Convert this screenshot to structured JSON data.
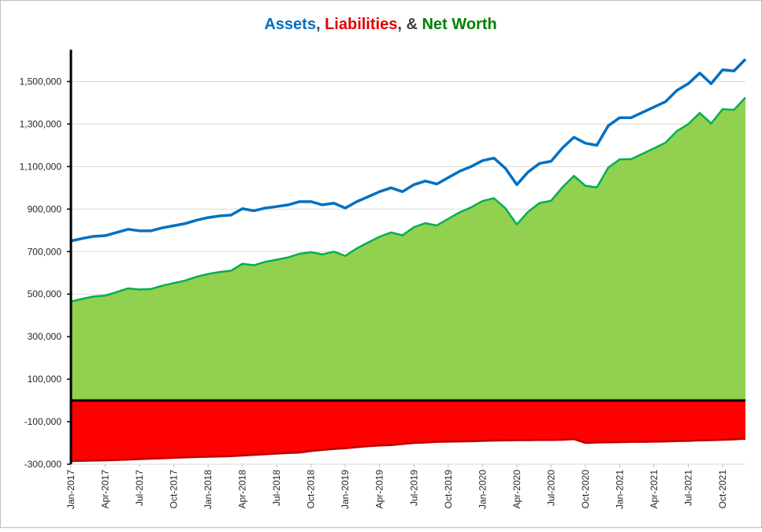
{
  "chart_data": {
    "type": "area",
    "title_segments": [
      {
        "text": "Assets",
        "color": "#0070c0"
      },
      {
        "text": ", ",
        "color": "#404040"
      },
      {
        "text": "Liabilities",
        "color": "#e00000"
      },
      {
        "text": ", & ",
        "color": "#404040"
      },
      {
        "text": "Net Worth",
        "color": "#008000"
      }
    ],
    "categories": [
      "Jan-2017",
      null,
      null,
      "Apr-2017",
      null,
      null,
      "Jul-2017",
      null,
      null,
      "Oct-2017",
      null,
      null,
      "Jan-2018",
      null,
      null,
      "Apr-2018",
      null,
      null,
      "Jul-2018",
      null,
      null,
      "Oct-2018",
      null,
      null,
      "Jan-2019",
      null,
      null,
      "Apr-2019",
      null,
      null,
      "Jul-2019",
      null,
      null,
      "Oct-2019",
      null,
      null,
      "Jan-2020",
      null,
      null,
      "Apr-2020",
      null,
      null,
      "Jul-2020",
      null,
      null,
      "Oct-2020",
      null,
      null,
      "Jan-2021",
      null,
      null,
      "Apr-2021",
      null,
      null,
      "Jul-2021",
      null,
      null,
      "Oct-2021",
      null,
      null
    ],
    "series": [
      {
        "name": "Net Worth",
        "kind": "area",
        "color": "#92d050",
        "line_color": "#00b050",
        "values": [
          465000,
          478000,
          489000,
          493000,
          510000,
          527000,
          522000,
          524000,
          540000,
          552000,
          564000,
          582000,
          595000,
          604000,
          610000,
          643000,
          636000,
          652000,
          662000,
          673000,
          690000,
          697000,
          687000,
          700000,
          680000,
          715000,
          743000,
          770000,
          790000,
          777000,
          815000,
          834000,
          823000,
          854000,
          885000,
          908000,
          938000,
          951000,
          904000,
          828000,
          888000,
          929000,
          939000,
          1003000,
          1056000,
          1010000,
          1002000,
          1095000,
          1134000,
          1135000,
          1160000,
          1186000,
          1212000,
          1267000,
          1300000,
          1352000,
          1303000,
          1370000,
          1367000,
          1425000
        ]
      },
      {
        "name": "Liabilities",
        "kind": "area",
        "color": "#ff0000",
        "line_color": "#c00000",
        "values": [
          -285000,
          -284000,
          -283000,
          -282000,
          -280000,
          -278000,
          -276000,
          -274000,
          -272000,
          -270000,
          -268000,
          -266000,
          -265000,
          -264000,
          -262000,
          -259000,
          -256000,
          -253000,
          -250000,
          -247000,
          -245000,
          -238000,
          -233000,
          -228000,
          -225000,
          -220000,
          -215000,
          -212000,
          -210000,
          -205000,
          -200000,
          -198000,
          -195000,
          -194000,
          -193000,
          -192000,
          -190000,
          -189000,
          -188000,
          -187000,
          -187000,
          -186000,
          -186000,
          -185000,
          -182000,
          -200000,
          -198000,
          -197000,
          -196000,
          -195000,
          -195000,
          -194000,
          -193000,
          -191000,
          -190000,
          -188000,
          -187000,
          -185000,
          -183000,
          -180000
        ]
      },
      {
        "name": "Assets",
        "kind": "line",
        "color": "#0070c0",
        "values": [
          750000,
          762000,
          772000,
          775000,
          790000,
          805000,
          798000,
          798000,
          812000,
          822000,
          832000,
          848000,
          860000,
          868000,
          872000,
          902000,
          892000,
          905000,
          912000,
          920000,
          935000,
          935000,
          920000,
          928000,
          905000,
          935000,
          958000,
          982000,
          1000000,
          982000,
          1015000,
          1032000,
          1018000,
          1048000,
          1078000,
          1100000,
          1128000,
          1140000,
          1092000,
          1015000,
          1075000,
          1115000,
          1125000,
          1188000,
          1238000,
          1210000,
          1200000,
          1292000,
          1330000,
          1330000,
          1355000,
          1380000,
          1405000,
          1458000,
          1490000,
          1540000,
          1490000,
          1555000,
          1550000,
          1605000
        ]
      }
    ],
    "ylim": [
      -300000,
      1650000
    ],
    "yticks": [
      {
        "value": -300000,
        "label": "-300,000"
      },
      {
        "value": -100000,
        "label": "-100,000"
      },
      {
        "value": 100000,
        "label": "100,000"
      },
      {
        "value": 300000,
        "label": "300,000"
      },
      {
        "value": 500000,
        "label": "500,000"
      },
      {
        "value": 700000,
        "label": "700,000"
      },
      {
        "value": 900000,
        "label": "900,000"
      },
      {
        "value": 1100000,
        "label": "1,100,000"
      },
      {
        "value": 1300000,
        "label": "1,300,000"
      },
      {
        "value": 1500000,
        "label": "1,500,000"
      }
    ],
    "grid": true
  }
}
